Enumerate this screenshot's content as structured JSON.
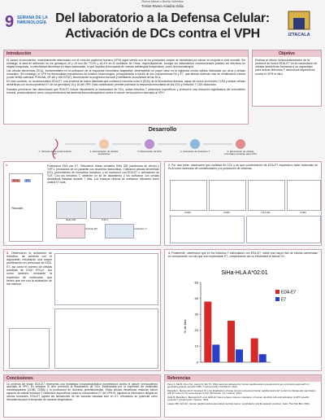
{
  "header": {
    "top_line": "Rivera Navarro Noelia Valentina",
    "authors": "Tomas Rivero Ariadna Sofia",
    "title_line1": "Del laboratorio a la Defensa Celular:",
    "title_line2": "Activación de DCs contra el VPH",
    "logo_left_number": "9",
    "logo_left_text": "SEMANA DE LA INMUNOLOGÍA",
    "logo_right": "IZTACALA"
  },
  "introduction": {
    "heading": "Introducción",
    "paragraphs": [
      "El cáncer cervicouterino, estrechamente relacionado con el virus del papiloma humano (VPH) sigue siendo uno de los principales causas de mortalidad por cáncer en mujeres a nivel mundial. Sin embargo, la tasa de detección en los genotipos 16 y 18 son del 73,9% y 16,4% en el occidente de China, respectivamente. Aunque los tratamientos convencionales pueden ser efectivos en etapas tempranas, su efectividad disminuye en fases avanzadas, lo que impulsa la búsqueda de nuevas estrategias terapéuticas, como la inmunoterapia.",
      "Las células dendríticas (DCs), fundamentales en la activación de la respuesta inmunitaria adaptativa, desempeñan un papel clave en la vigilancia contra células infectadas por virus y células tumorales. Sin embargo, el VPH ha desarrollado mecanismos de evasión inmunológica, principalmente a través de sus oncoproteínas E6 y E7, que alteran diversas vías de señalización celular (como Wnt/β-catenina, PI3K/Akt, NF-κB y JAK/STAT), favoreciendo la progresión tumoral y debilitando la actividad de las DCs.",
      "En este contexto, se ha desarrollado EDA-E7, una proteína de fusión diseñada que combina el dominio extra A (EDA) de la fibronectina humana, capaz de unirse al receptor TLR4 y activar células dendríticas con la oncoproteína E7 de los genotipos 16 y 18 del VPH. Esta combinación permite potenciar la respuesta inmunitaria de las DCs y linfocitos T CD8 citotóxicos.",
      "Estudios preclínicos han demostrado que EDA-E7 induce eficazmente la maduración de DCs, activa linfocitos T citotóxicos específicos y promueve una reducción significativa del crecimiento tumoral, posicionándose como una prometedora herramienta inmunoterapéutica contra el cáncer cervicouterino asociado al VPH."
    ]
  },
  "objective": {
    "heading": "Objetivo",
    "text": "Evaluar el efecto inmunoestimulador de la proteína de fusión EDA-E7 en la maduración de células dendríticas humanas y su capacidad para activar linfocitos T citotóxicos específicos contra el VPH in vitro."
  },
  "development": {
    "heading": "Desarrollo",
    "steps": [
      "1. Síntesis de la proteína EDA-E7",
      "2. Estimulación de células dendríticas",
      "3. Maduración de DCs",
      "4. Activación de linfocitos T",
      "5. Eliminación de células tumorales positivas para VPH"
    ]
  },
  "panels": [
    {
      "number": "1.",
      "text": "Fusionaron EDA con E7. Obtuvieron líneas celulares SiHa 293 (carcinoma de cérvix) y THP-1 (monocitos de un paciente con leucemia monocítica). Cultivaron células dendríticas (DC), provenientes de monocitos humanos, y se incubaron con EDA-E7 o activadores de TLR. Con los linfocitos T, obtienen un kit de aislamiento y los cultivaron con células dendríticas tratadas durante 7 días. Los ensayos clínicos se realizaron utilizando como control E7 sola.",
      "labels": [
        "EDA",
        "E7",
        "Plásmido",
        "SiHa 293",
        "THP-1",
        "Células DC",
        "Linfocitos T"
      ]
    },
    {
      "number": "2.",
      "text": "Por otra parte, observaron que cantidad de DCs y en qué concentración de EDA-E7 expresaron tanto moléculas de HLA como moléculas de coestimulación y la producción de citocinas.",
      "labels": [
        "CD80",
        "CD86",
        "HLA-DR",
        "CD83"
      ]
    },
    {
      "number": "3.",
      "text": "Observaron la activación de linfocitos, de acuerdo con el adyuvante, resultando una mayor proliferación en presencia de EDA-E7, así como el número de células positivas de CD8+ IFN-γ+. Así como también, mediante la expresión de moléculas, que tienen que ver con la activación de los mismos."
    },
    {
      "number": "4.",
      "text": "Finalmente, observaron que en los linfocitos T estimulados con EDA-E7, había una mayor lisis de células cancerosas en comparación con las que solo expresaban E7, comprobando así su efectividad al activar DC."
    }
  ],
  "chart": {
    "title": "SiHa-HLA A*02:01",
    "y_label": "% de lisis",
    "categories": [
      null,
      null,
      null
    ],
    "series": [
      {
        "name": "EDA-E7",
        "color": "#d42a2a",
        "values": [
          38,
          26,
          15
        ]
      },
      {
        "name": "E7",
        "color": "#2a3fc4",
        "values": [
          11,
          8,
          5
        ]
      }
    ],
    "ylim": [
      0,
      50
    ],
    "yticks": [
      0,
      10,
      20,
      30,
      40,
      50
    ]
  },
  "conclusions": {
    "heading": "Conclusiones",
    "text": "La proteína de fusión EDA-E7 representa una estrategia inmunoterapéutica prometedora contra el cáncer cervicouterino asociado al VPH. En ensayos in vitro promovió la maduración de DCs, evidenciada por la expresión de moléculas coestimuladoras (CD80, CD86) y la producción de citocinas proinflamatorias. Estas células dendríticas maduras fueron capaces de activar linfocitos T citotóxicos específicos contra la oncoproteína E7 del VPH16, logrando la eliminación dirigida de células tumorales. EDA-E7 supera las limitaciones de las vacunas basadas solo en E7, reforzando su potencial como herramienta para el desarrollo de vacunas terapéuticas."
  },
  "references": {
    "heading": "Referencias",
    "items": [
      "Peng S, Ma B, Chen SH, Hung CF, Wu TC. DNA vaccines delivered by human papillomavirus pseudovirions as a promising approach for generating antigen-specific CD8+ T cell immunity. Cell Biosci. 2013.",
      "Mansilla C, Berraondo P, Durantez M, et al. Eradication of large tumors expressing human papillomavirus E7 protein by therapeutic vaccination with E7 fused to the extra domain A from fibronectin. Int J Cancer. 2012.",
      "Julià M, Mansilla C, Berraondo P, et al. EDA-E7 fusion protein induces maturation of human dendritic cells and activation of HPV-specific cytotoxic T lymphocytes. Vaccine. 2016.",
      "Lasaro MO, Ertl HC. Human papillomavirus-associated cervical cancer: prophylactic and therapeutic vaccines. Gene Ther Mol Biol. 2004."
    ]
  }
}
